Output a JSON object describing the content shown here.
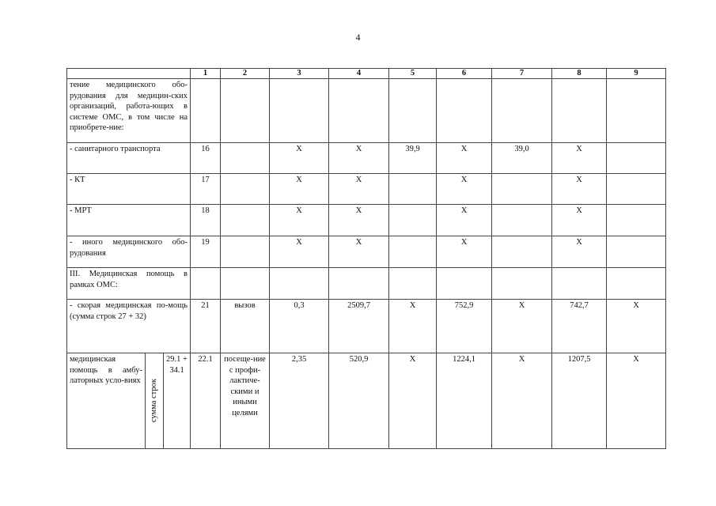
{
  "page_number": "4",
  "table": {
    "headers": [
      "",
      "1",
      "2",
      "3",
      "4",
      "5",
      "6",
      "7",
      "8",
      "9"
    ],
    "rows": [
      {
        "label": "тение медицинского обо-рудования для медицин-ских организаций, работа-ющих в системе ОМС, в том числе на приобрете-ние:",
        "cells": [
          "",
          "",
          "",
          "",
          "",
          "",
          "",
          "",
          ""
        ]
      },
      {
        "label": "- санитарного транспорта",
        "cells": [
          "16",
          "",
          "X",
          "X",
          "39,9",
          "X",
          "39,0",
          "X",
          ""
        ]
      },
      {
        "label": "- КТ",
        "cells": [
          "17",
          "",
          "X",
          "X",
          "",
          "X",
          "",
          "X",
          ""
        ]
      },
      {
        "label": "- МРТ",
        "cells": [
          "18",
          "",
          "X",
          "X",
          "",
          "X",
          "",
          "X",
          ""
        ]
      },
      {
        "label": "- иного медицинского обо-рудования",
        "cells": [
          "19",
          "",
          "X",
          "X",
          "",
          "X",
          "",
          "X",
          ""
        ]
      },
      {
        "label": "III. Медицинская помощь в рамках ОМС:",
        "cells": [
          "",
          "",
          "",
          "",
          "",
          "",
          "",
          "",
          ""
        ]
      },
      {
        "label": "- скорая медицинская по-мощь (сумма строк 27 + 32)",
        "cells": [
          "21",
          "вызов",
          "0,3",
          "2509,7",
          "X",
          "752,9",
          "X",
          "742,7",
          "X"
        ]
      }
    ],
    "last_row": {
      "label": "медицинская помощь в амбу-латорных усло-виях",
      "rotated_label": "сумма строк",
      "sum_rows": "29.1 + 34.1",
      "cells": [
        "22.1",
        "посеще-ние с профи-лактиче-скими и иными целями",
        "2,35",
        "520,9",
        "X",
        "1224,1",
        "X",
        "1207,5",
        "X"
      ]
    }
  }
}
